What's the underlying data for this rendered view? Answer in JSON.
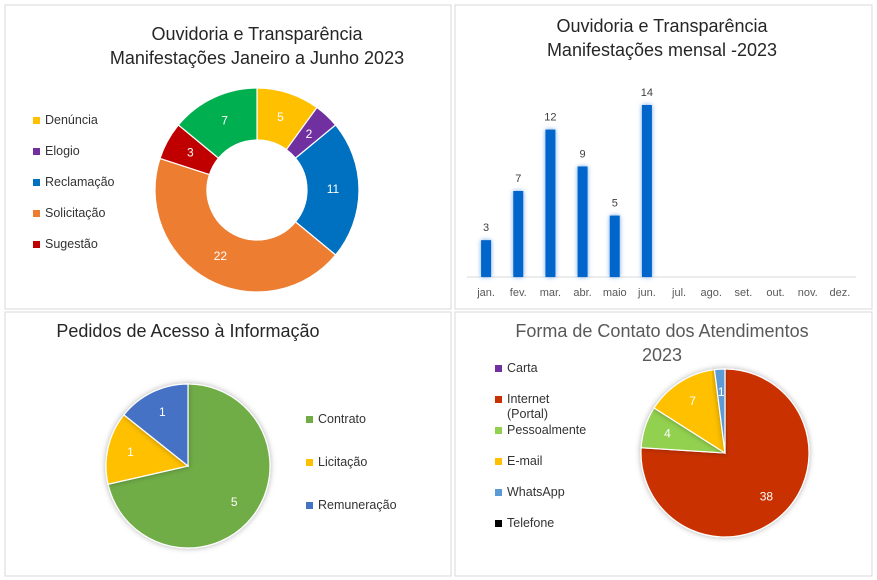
{
  "chart_data": [
    {
      "type": "donut",
      "title": [
        "Ouvidoria e Transparência",
        "Manifestações Janeiro a Junho 2023"
      ],
      "categories": [
        "Denúncia",
        "Elogio",
        "Reclamação",
        "Solicitação",
        "Sugestão",
        null
      ],
      "values": [
        5,
        2,
        11,
        22,
        3,
        7
      ],
      "colors": [
        "#ffc000",
        "#7030a0",
        "#0070c0",
        "#ed7d31",
        "#c00000",
        "#00b050"
      ],
      "legend": "left"
    },
    {
      "type": "bar",
      "title": [
        "Ouvidoria e Transparência",
        "Manifestações mensal -2023"
      ],
      "categories": [
        "jan.",
        "fev.",
        "mar.",
        "abr.",
        "maio",
        "jun.",
        "jul.",
        "ago.",
        "set.",
        "out.",
        "nov.",
        "dez."
      ],
      "values": [
        3,
        7,
        12,
        9,
        5,
        14,
        null,
        null,
        null,
        null,
        null,
        null
      ],
      "color": "#0066cc"
    },
    {
      "type": "pie",
      "title": [
        "Pedidos de Acesso à Informação"
      ],
      "categories": [
        "Contrato",
        "Licitação",
        "Remuneração"
      ],
      "values": [
        5,
        1,
        1
      ],
      "colors": [
        "#70ad47",
        "#ffc000",
        "#4472c4"
      ],
      "legend": "right"
    },
    {
      "type": "pie",
      "title": [
        "Forma de Contato dos Atendimentos",
        "2023"
      ],
      "categories": [
        "Carta",
        "Internet (Portal)",
        "Pessoalmente",
        "E-mail",
        "WhatsApp",
        "Telefone"
      ],
      "values": [
        0,
        38,
        4,
        7,
        1,
        0
      ],
      "colors": [
        "#7030a0",
        "#c93200",
        "#92d050",
        "#ffc000",
        "#5b9bd5",
        "#000000"
      ],
      "legend": "left"
    }
  ]
}
